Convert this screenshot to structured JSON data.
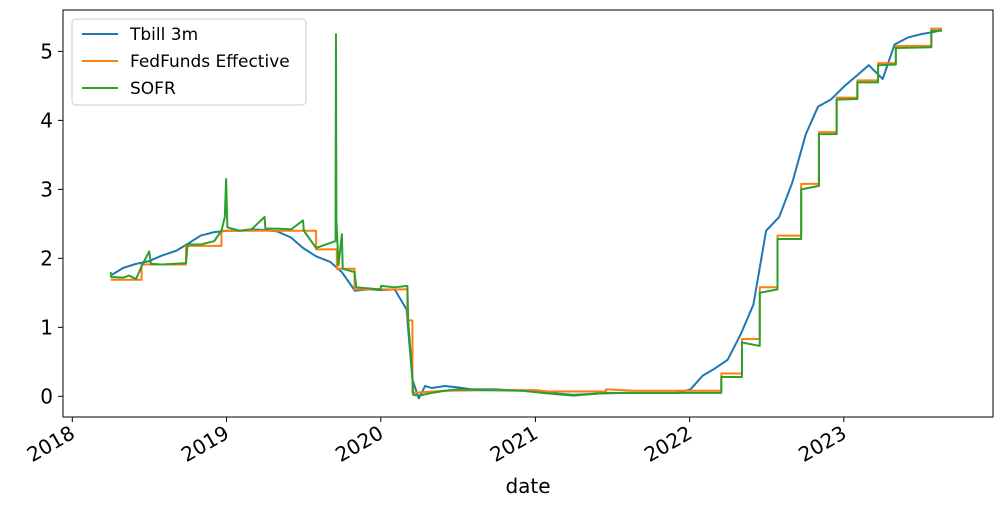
{
  "chart_data": {
    "type": "line",
    "title": "",
    "xlabel": "date",
    "ylabel": "",
    "x_ticks": [
      "2018",
      "2019",
      "2020",
      "2021",
      "2022",
      "2023"
    ],
    "y_ticks": [
      0,
      1,
      2,
      3,
      4,
      5
    ],
    "xlim": [
      "2017-12-10",
      "2023-12-20"
    ],
    "ylim": [
      -0.3,
      5.6
    ],
    "grid": false,
    "legend_position": "top-left",
    "series": [
      {
        "name": "Tbill 3m",
        "color": "#1f77b4",
        "points": [
          [
            "2018-04-02",
            1.75
          ],
          [
            "2018-05-01",
            1.86
          ],
          [
            "2018-06-01",
            1.92
          ],
          [
            "2018-07-02",
            1.96
          ],
          [
            "2018-08-01",
            2.04
          ],
          [
            "2018-09-04",
            2.11
          ],
          [
            "2018-10-01",
            2.21
          ],
          [
            "2018-11-01",
            2.33
          ],
          [
            "2018-12-03",
            2.38
          ],
          [
            "2019-01-02",
            2.4
          ],
          [
            "2019-02-01",
            2.4
          ],
          [
            "2019-03-01",
            2.42
          ],
          [
            "2019-04-01",
            2.41
          ],
          [
            "2019-05-01",
            2.39
          ],
          [
            "2019-06-03",
            2.3
          ],
          [
            "2019-07-01",
            2.15
          ],
          [
            "2019-08-01",
            2.03
          ],
          [
            "2019-09-03",
            1.95
          ],
          [
            "2019-10-01",
            1.8
          ],
          [
            "2019-11-01",
            1.53
          ],
          [
            "2019-12-02",
            1.55
          ],
          [
            "2020-01-02",
            1.54
          ],
          [
            "2020-02-03",
            1.55
          ],
          [
            "2020-03-02",
            1.26
          ],
          [
            "2020-03-16",
            0.24
          ],
          [
            "2020-03-31",
            -0.03
          ],
          [
            "2020-04-15",
            0.15
          ],
          [
            "2020-05-01",
            0.12
          ],
          [
            "2020-06-01",
            0.15
          ],
          [
            "2020-07-01",
            0.13
          ],
          [
            "2020-08-03",
            0.1
          ],
          [
            "2020-10-01",
            0.1
          ],
          [
            "2020-12-01",
            0.08
          ],
          [
            "2021-02-01",
            0.05
          ],
          [
            "2021-04-01",
            0.02
          ],
          [
            "2021-06-01",
            0.04
          ],
          [
            "2021-08-02",
            0.05
          ],
          [
            "2021-10-01",
            0.05
          ],
          [
            "2021-12-01",
            0.05
          ],
          [
            "2022-01-03",
            0.1
          ],
          [
            "2022-02-01",
            0.3
          ],
          [
            "2022-03-01",
            0.4
          ],
          [
            "2022-04-01",
            0.53
          ],
          [
            "2022-05-02",
            0.9
          ],
          [
            "2022-06-01",
            1.33
          ],
          [
            "2022-07-01",
            2.4
          ],
          [
            "2022-08-01",
            2.6
          ],
          [
            "2022-09-01",
            3.1
          ],
          [
            "2022-10-03",
            3.8
          ],
          [
            "2022-11-01",
            4.2
          ],
          [
            "2022-12-01",
            4.3
          ],
          [
            "2023-01-03",
            4.5
          ],
          [
            "2023-02-01",
            4.65
          ],
          [
            "2023-03-01",
            4.8
          ],
          [
            "2023-04-03",
            4.6
          ],
          [
            "2023-05-01",
            5.1
          ],
          [
            "2023-06-01",
            5.2
          ],
          [
            "2023-07-03",
            5.25
          ],
          [
            "2023-08-01",
            5.28
          ],
          [
            "2023-08-21",
            5.31
          ]
        ]
      },
      {
        "name": "FedFunds Effective",
        "color": "#ff7f0e",
        "points": [
          [
            "2018-04-02",
            1.69
          ],
          [
            "2018-06-14",
            1.69
          ],
          [
            "2018-06-14",
            1.91
          ],
          [
            "2018-09-27",
            1.91
          ],
          [
            "2018-09-27",
            2.18
          ],
          [
            "2018-12-20",
            2.18
          ],
          [
            "2018-12-20",
            2.4
          ],
          [
            "2019-08-01",
            2.4
          ],
          [
            "2019-08-01",
            2.13
          ],
          [
            "2019-09-19",
            2.13
          ],
          [
            "2019-09-19",
            1.85
          ],
          [
            "2019-10-31",
            1.85
          ],
          [
            "2019-10-31",
            1.55
          ],
          [
            "2020-03-04",
            1.55
          ],
          [
            "2020-03-04",
            1.1
          ],
          [
            "2020-03-16",
            1.1
          ],
          [
            "2020-03-16",
            0.05
          ],
          [
            "2020-06-01",
            0.08
          ],
          [
            "2020-10-01",
            0.09
          ],
          [
            "2021-01-04",
            0.09
          ],
          [
            "2021-02-01",
            0.07
          ],
          [
            "2021-06-17",
            0.07
          ],
          [
            "2021-06-17",
            0.1
          ],
          [
            "2021-09-01",
            0.08
          ],
          [
            "2022-03-17",
            0.08
          ],
          [
            "2022-03-17",
            0.33
          ],
          [
            "2022-05-05",
            0.33
          ],
          [
            "2022-05-05",
            0.83
          ],
          [
            "2022-06-16",
            0.83
          ],
          [
            "2022-06-16",
            1.58
          ],
          [
            "2022-07-28",
            1.58
          ],
          [
            "2022-07-28",
            2.33
          ],
          [
            "2022-09-22",
            2.33
          ],
          [
            "2022-09-22",
            3.08
          ],
          [
            "2022-11-03",
            3.08
          ],
          [
            "2022-11-03",
            3.83
          ],
          [
            "2022-12-15",
            3.83
          ],
          [
            "2022-12-15",
            4.33
          ],
          [
            "2023-02-02",
            4.33
          ],
          [
            "2023-02-02",
            4.58
          ],
          [
            "2023-03-23",
            4.58
          ],
          [
            "2023-03-23",
            4.83
          ],
          [
            "2023-05-04",
            4.83
          ],
          [
            "2023-05-04",
            5.08
          ],
          [
            "2023-07-27",
            5.08
          ],
          [
            "2023-07-27",
            5.33
          ],
          [
            "2023-08-21",
            5.33
          ]
        ]
      },
      {
        "name": "SOFR",
        "color": "#2ca02c",
        "points": [
          [
            "2018-04-02",
            1.8
          ],
          [
            "2018-04-03",
            1.73
          ],
          [
            "2018-05-01",
            1.72
          ],
          [
            "2018-05-15",
            1.75
          ],
          [
            "2018-06-01",
            1.7
          ],
          [
            "2018-06-15",
            1.9
          ],
          [
            "2018-07-02",
            2.1
          ],
          [
            "2018-07-06",
            1.92
          ],
          [
            "2018-08-01",
            1.91
          ],
          [
            "2018-09-27",
            1.93
          ],
          [
            "2018-10-01",
            2.2
          ],
          [
            "2018-11-01",
            2.2
          ],
          [
            "2018-12-03",
            2.25
          ],
          [
            "2018-12-20",
            2.4
          ],
          [
            "2018-12-28",
            2.6
          ],
          [
            "2018-12-31",
            3.15
          ],
          [
            "2019-01-03",
            2.45
          ],
          [
            "2019-02-01",
            2.4
          ],
          [
            "2019-03-01",
            2.42
          ],
          [
            "2019-04-01",
            2.6
          ],
          [
            "2019-04-03",
            2.43
          ],
          [
            "2019-05-01",
            2.43
          ],
          [
            "2019-06-03",
            2.42
          ],
          [
            "2019-07-01",
            2.55
          ],
          [
            "2019-07-03",
            2.4
          ],
          [
            "2019-08-01",
            2.15
          ],
          [
            "2019-09-16",
            2.25
          ],
          [
            "2019-09-17",
            5.25
          ],
          [
            "2019-09-18",
            2.55
          ],
          [
            "2019-09-23",
            1.9
          ],
          [
            "2019-10-01",
            2.35
          ],
          [
            "2019-10-03",
            1.85
          ],
          [
            "2019-10-31",
            1.8
          ],
          [
            "2019-11-04",
            1.58
          ],
          [
            "2019-12-31",
            1.55
          ],
          [
            "2020-01-02",
            1.6
          ],
          [
            "2020-02-03",
            1.58
          ],
          [
            "2020-03-04",
            1.6
          ],
          [
            "2020-03-06",
            1.1
          ],
          [
            "2020-03-16",
            0.26
          ],
          [
            "2020-03-18",
            0.02
          ],
          [
            "2020-04-01",
            0.01
          ],
          [
            "2020-05-01",
            0.05
          ],
          [
            "2020-06-01",
            0.08
          ],
          [
            "2020-07-01",
            0.1
          ],
          [
            "2020-09-01",
            0.09
          ],
          [
            "2020-12-01",
            0.08
          ],
          [
            "2021-02-01",
            0.04
          ],
          [
            "2021-04-01",
            0.01
          ],
          [
            "2021-06-17",
            0.05
          ],
          [
            "2021-09-01",
            0.05
          ],
          [
            "2021-12-01",
            0.05
          ],
          [
            "2022-03-17",
            0.05
          ],
          [
            "2022-03-17",
            0.28
          ],
          [
            "2022-05-05",
            0.28
          ],
          [
            "2022-05-05",
            0.78
          ],
          [
            "2022-06-16",
            0.73
          ],
          [
            "2022-06-16",
            1.5
          ],
          [
            "2022-07-28",
            1.55
          ],
          [
            "2022-07-28",
            2.28
          ],
          [
            "2022-09-22",
            2.28
          ],
          [
            "2022-09-22",
            3.0
          ],
          [
            "2022-11-03",
            3.05
          ],
          [
            "2022-11-03",
            3.8
          ],
          [
            "2022-12-15",
            3.8
          ],
          [
            "2022-12-15",
            4.3
          ],
          [
            "2023-02-02",
            4.31
          ],
          [
            "2023-02-02",
            4.55
          ],
          [
            "2023-03-23",
            4.55
          ],
          [
            "2023-03-23",
            4.8
          ],
          [
            "2023-05-04",
            4.81
          ],
          [
            "2023-05-04",
            5.05
          ],
          [
            "2023-07-27",
            5.06
          ],
          [
            "2023-07-27",
            5.3
          ],
          [
            "2023-08-21",
            5.3
          ]
        ]
      }
    ]
  }
}
